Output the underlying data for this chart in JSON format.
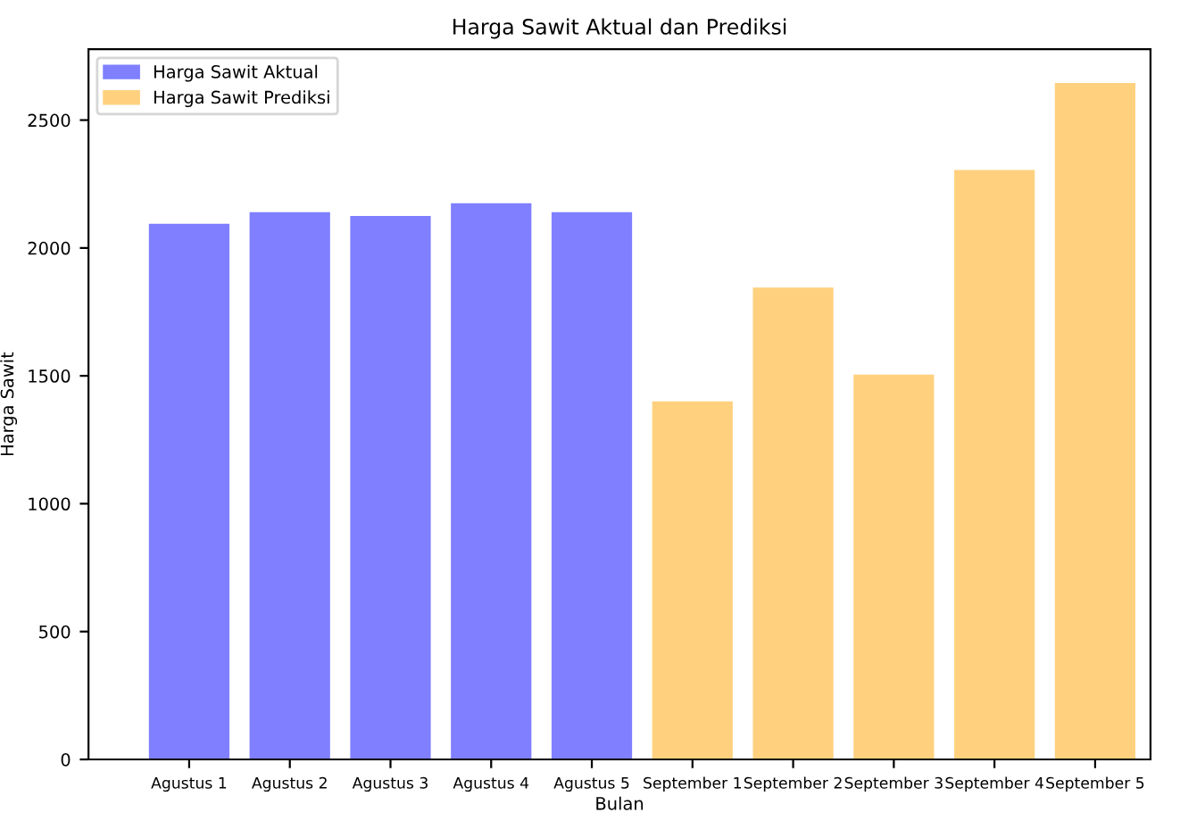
{
  "chart_data": {
    "type": "bar",
    "title": "Harga Sawit Aktual dan Prediksi",
    "xlabel": "Bulan",
    "ylabel": "Harga Sawit",
    "categories": [
      "Agustus 1",
      "Agustus 2",
      "Agustus 3",
      "Agustus 4",
      "Agustus 5",
      "September 1",
      "September 2",
      "September 3",
      "September 4",
      "September 5"
    ],
    "series": [
      {
        "name": "Harga Sawit Aktual",
        "color": "#7f7fff",
        "values": [
          2095,
          2140,
          2125,
          2175,
          2140,
          null,
          null,
          null,
          null,
          null
        ]
      },
      {
        "name": "Harga Sawit Prediksi",
        "color": "#ffd17f",
        "values": [
          null,
          null,
          null,
          null,
          null,
          1400,
          1845,
          1505,
          2305,
          2645
        ]
      }
    ],
    "ylim": [
      0,
      2777
    ],
    "yticks": [
      0,
      500,
      1000,
      1500,
      2000,
      2500
    ],
    "grid": false,
    "legend": "top left"
  }
}
